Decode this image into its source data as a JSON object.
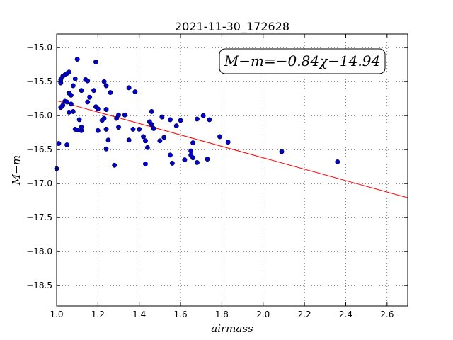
{
  "chart_data": {
    "type": "scatter",
    "title": "2021-11-30_172628",
    "xlabel": "airmass",
    "ylabel": "M−m",
    "xlim": [
      1.0,
      2.7
    ],
    "ylim": [
      -18.8,
      -14.8
    ],
    "y_inverted": true,
    "grid": true,
    "xticks": [
      "1.0",
      "1.2",
      "1.4",
      "1.6",
      "1.8",
      "2.0",
      "2.2",
      "2.4",
      "2.6"
    ],
    "xtick_values": [
      1.0,
      1.2,
      1.4,
      1.6,
      1.8,
      2.0,
      2.2,
      2.4,
      2.6
    ],
    "yticks": [
      "−15.0",
      "−15.5",
      "−16.0",
      "−16.5",
      "−17.0",
      "−17.5",
      "−18.0",
      "−18.5"
    ],
    "ytick_values": [
      -15.0,
      -15.5,
      -16.0,
      -16.5,
      -17.0,
      -17.5,
      -18.0,
      -18.5
    ],
    "annotation": "M−m=−0.84χ−14.94",
    "fit": {
      "slope": -0.84,
      "intercept": -14.94,
      "color": "#ff0000"
    },
    "marker_color": "#0000cc",
    "points": [
      {
        "x": 1.0,
        "y": -16.78
      },
      {
        "x": 1.01,
        "y": -16.41
      },
      {
        "x": 1.02,
        "y": -15.52
      },
      {
        "x": 1.02,
        "y": -15.47
      },
      {
        "x": 1.03,
        "y": -15.42
      },
      {
        "x": 1.04,
        "y": -15.4
      },
      {
        "x": 1.05,
        "y": -15.38
      },
      {
        "x": 1.06,
        "y": -15.36
      },
      {
        "x": 1.02,
        "y": -15.88
      },
      {
        "x": 1.03,
        "y": -15.85
      },
      {
        "x": 1.04,
        "y": -15.79
      },
      {
        "x": 1.05,
        "y": -15.8
      },
      {
        "x": 1.06,
        "y": -15.67
      },
      {
        "x": 1.07,
        "y": -15.7
      },
      {
        "x": 1.06,
        "y": -15.95
      },
      {
        "x": 1.07,
        "y": -15.83
      },
      {
        "x": 1.08,
        "y": -15.94
      },
      {
        "x": 1.08,
        "y": -15.56
      },
      {
        "x": 1.09,
        "y": -15.46
      },
      {
        "x": 1.1,
        "y": -15.17
      },
      {
        "x": 1.05,
        "y": -16.43
      },
      {
        "x": 1.09,
        "y": -16.2
      },
      {
        "x": 1.1,
        "y": -16.21
      },
      {
        "x": 1.12,
        "y": -16.22
      },
      {
        "x": 1.11,
        "y": -16.06
      },
      {
        "x": 1.12,
        "y": -16.17
      },
      {
        "x": 1.12,
        "y": -15.63
      },
      {
        "x": 1.14,
        "y": -15.47
      },
      {
        "x": 1.15,
        "y": -15.49
      },
      {
        "x": 1.15,
        "y": -15.8
      },
      {
        "x": 1.16,
        "y": -15.73
      },
      {
        "x": 1.18,
        "y": -15.63
      },
      {
        "x": 1.19,
        "y": -15.21
      },
      {
        "x": 1.19,
        "y": -15.87
      },
      {
        "x": 1.2,
        "y": -15.9
      },
      {
        "x": 1.2,
        "y": -16.22
      },
      {
        "x": 1.22,
        "y": -16.07
      },
      {
        "x": 1.23,
        "y": -16.04
      },
      {
        "x": 1.23,
        "y": -15.5
      },
      {
        "x": 1.24,
        "y": -15.56
      },
      {
        "x": 1.24,
        "y": -15.91
      },
      {
        "x": 1.24,
        "y": -16.2
      },
      {
        "x": 1.25,
        "y": -16.36
      },
      {
        "x": 1.24,
        "y": -16.49
      },
      {
        "x": 1.26,
        "y": -15.66
      },
      {
        "x": 1.28,
        "y": -16.73
      },
      {
        "x": 1.29,
        "y": -16.04
      },
      {
        "x": 1.3,
        "y": -15.99
      },
      {
        "x": 1.3,
        "y": -16.17
      },
      {
        "x": 1.33,
        "y": -15.99
      },
      {
        "x": 1.35,
        "y": -15.59
      },
      {
        "x": 1.35,
        "y": -16.36
      },
      {
        "x": 1.37,
        "y": -16.2
      },
      {
        "x": 1.38,
        "y": -15.65
      },
      {
        "x": 1.4,
        "y": -16.2
      },
      {
        "x": 1.42,
        "y": -16.31
      },
      {
        "x": 1.43,
        "y": -16.37
      },
      {
        "x": 1.43,
        "y": -16.71
      },
      {
        "x": 1.44,
        "y": -16.47
      },
      {
        "x": 1.45,
        "y": -16.09
      },
      {
        "x": 1.46,
        "y": -16.13
      },
      {
        "x": 1.47,
        "y": -16.19
      },
      {
        "x": 1.46,
        "y": -15.94
      },
      {
        "x": 1.5,
        "y": -16.37
      },
      {
        "x": 1.51,
        "y": -16.02
      },
      {
        "x": 1.52,
        "y": -16.32
      },
      {
        "x": 1.55,
        "y": -16.06
      },
      {
        "x": 1.55,
        "y": -16.58
      },
      {
        "x": 1.56,
        "y": -16.7
      },
      {
        "x": 1.58,
        "y": -16.15
      },
      {
        "x": 1.6,
        "y": -16.07
      },
      {
        "x": 1.62,
        "y": -16.65
      },
      {
        "x": 1.65,
        "y": -16.52
      },
      {
        "x": 1.65,
        "y": -16.58
      },
      {
        "x": 1.66,
        "y": -16.62
      },
      {
        "x": 1.66,
        "y": -16.4
      },
      {
        "x": 1.68,
        "y": -16.05
      },
      {
        "x": 1.68,
        "y": -16.69
      },
      {
        "x": 1.71,
        "y": -16.0
      },
      {
        "x": 1.73,
        "y": -16.64
      },
      {
        "x": 1.74,
        "y": -16.06
      },
      {
        "x": 1.79,
        "y": -16.31
      },
      {
        "x": 1.83,
        "y": -16.39
      },
      {
        "x": 2.09,
        "y": -16.53
      },
      {
        "x": 2.36,
        "y": -16.68
      }
    ]
  }
}
